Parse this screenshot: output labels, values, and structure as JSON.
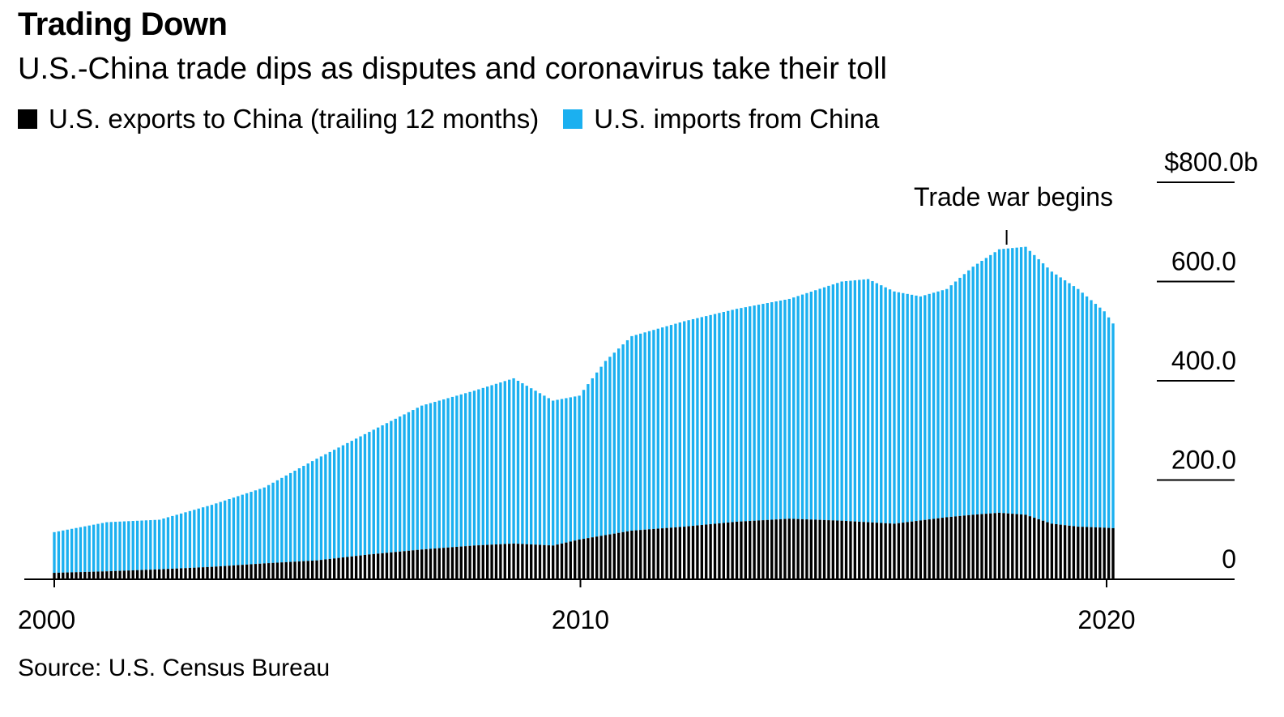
{
  "chart_data": {
    "type": "bar",
    "stacked": true,
    "title": "Trading Down",
    "subtitle": "U.S.-China trade dips as disputes and coronavirus take their toll",
    "source": "Source: U.S. Census Bureau",
    "series": [
      {
        "name": "U.S. exports to China (trailing 12 months)",
        "color": "#000000"
      },
      {
        "name": "U.S. imports from China",
        "color": "#1bb0f0"
      }
    ],
    "x_tick_labels": [
      "2000",
      "2010",
      "2020"
    ],
    "y_tick_labels": [
      "$800.0b",
      "600.0",
      "400.0",
      "200.0",
      "0"
    ],
    "y_tick_values": [
      800,
      600,
      400,
      200,
      0
    ],
    "ylim": [
      0,
      800
    ],
    "x_start": 2000.0,
    "x_end": 2020.25,
    "annotation": {
      "text": "Trade war begins",
      "x": 2018.1
    },
    "exports_keypoints": [
      [
        2000.0,
        13
      ],
      [
        2001.0,
        16
      ],
      [
        2002.0,
        20
      ],
      [
        2003.0,
        25
      ],
      [
        2004.0,
        32
      ],
      [
        2005.0,
        38
      ],
      [
        2006.0,
        50
      ],
      [
        2007.0,
        60
      ],
      [
        2008.0,
        68
      ],
      [
        2008.75,
        72
      ],
      [
        2009.5,
        68
      ],
      [
        2010.0,
        80
      ],
      [
        2011.0,
        98
      ],
      [
        2012.0,
        106
      ],
      [
        2013.0,
        116
      ],
      [
        2014.0,
        122
      ],
      [
        2015.0,
        118
      ],
      [
        2016.0,
        112
      ],
      [
        2017.0,
        125
      ],
      [
        2017.5,
        130
      ],
      [
        2018.0,
        134
      ],
      [
        2018.5,
        130
      ],
      [
        2019.0,
        112
      ],
      [
        2019.5,
        106
      ],
      [
        2020.0,
        104
      ],
      [
        2020.17,
        103
      ]
    ],
    "total_keypoints": [
      [
        2000.0,
        95
      ],
      [
        2001.0,
        115
      ],
      [
        2002.0,
        120
      ],
      [
        2003.0,
        150
      ],
      [
        2004.0,
        185
      ],
      [
        2005.0,
        243
      ],
      [
        2006.0,
        297
      ],
      [
        2007.0,
        350
      ],
      [
        2008.0,
        380
      ],
      [
        2008.75,
        405
      ],
      [
        2009.5,
        360
      ],
      [
        2010.0,
        370
      ],
      [
        2010.5,
        440
      ],
      [
        2011.0,
        490
      ],
      [
        2012.0,
        520
      ],
      [
        2013.0,
        545
      ],
      [
        2014.0,
        565
      ],
      [
        2015.0,
        600
      ],
      [
        2015.5,
        605
      ],
      [
        2016.0,
        580
      ],
      [
        2016.5,
        570
      ],
      [
        2017.0,
        585
      ],
      [
        2017.5,
        630
      ],
      [
        2018.0,
        665
      ],
      [
        2018.5,
        670
      ],
      [
        2019.0,
        620
      ],
      [
        2019.5,
        585
      ],
      [
        2020.0,
        540
      ],
      [
        2020.17,
        515
      ]
    ]
  },
  "legend": {
    "exports_label": "U.S. exports to China (trailing 12 months)",
    "imports_label": "U.S. imports from China"
  }
}
